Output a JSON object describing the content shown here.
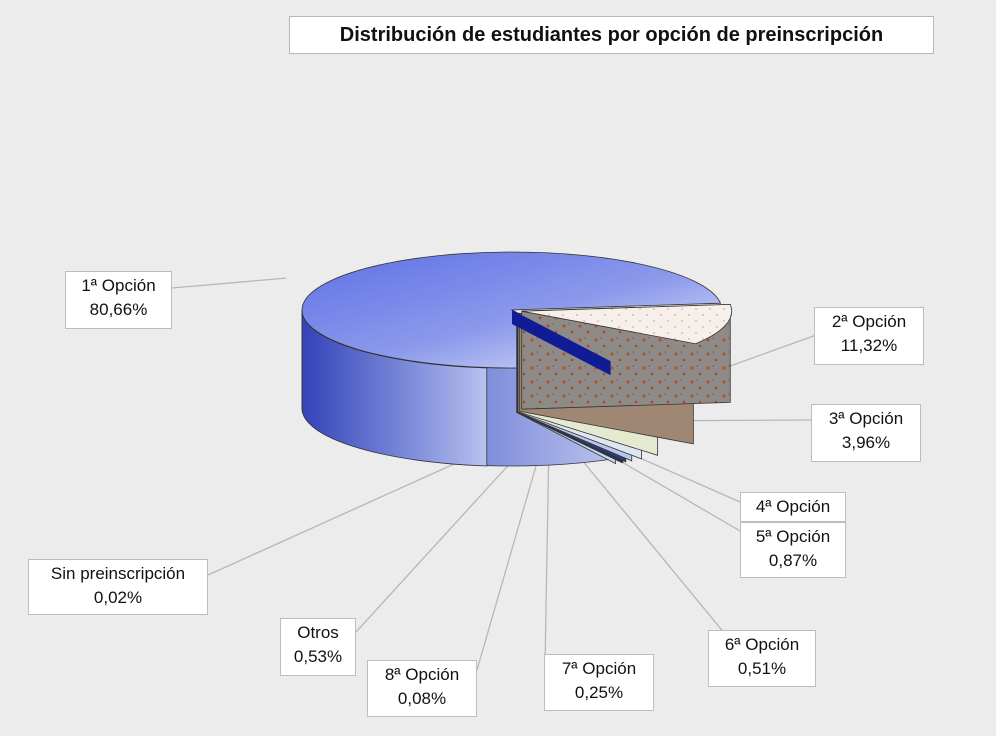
{
  "chart_data": {
    "type": "pie",
    "title": "Distribución de estudiantes por opción de preinscripción",
    "slices": [
      {
        "name": "1ª Opción",
        "value": 80.66,
        "label": "80,66%",
        "color": "#6b7fe0"
      },
      {
        "name": "2ª Opción",
        "value": 11.32,
        "label": "11,32%",
        "color": "#f7efe8"
      },
      {
        "name": "3ª Opción",
        "value": 3.96,
        "label": "3,96%",
        "color": "#f1c9a3"
      },
      {
        "name": "4ª Opción",
        "value": 1.5,
        "label": "",
        "color": "#f2f7da"
      },
      {
        "name": "5ª Opción",
        "value": 0.87,
        "label": "0,87%",
        "color": "#dfe6ef"
      },
      {
        "name": "6ª Opción",
        "value": 0.51,
        "label": "0,51%",
        "color": "#b8c6e6"
      },
      {
        "name": "7ª Opción",
        "value": 0.25,
        "label": "0,25%",
        "color": "#2c3d83"
      },
      {
        "name": "8ª Opción",
        "value": 0.08,
        "label": "0,08%",
        "color": "#1f2f6a"
      },
      {
        "name": "Otros",
        "value": 0.53,
        "label": "0,53%",
        "color": "#9ed4d4"
      },
      {
        "name": "Sin preinscripción",
        "value": 0.02,
        "label": "0,02%",
        "color": "#c8d7ea"
      }
    ],
    "style": "3d-exploded",
    "legend": "none"
  }
}
